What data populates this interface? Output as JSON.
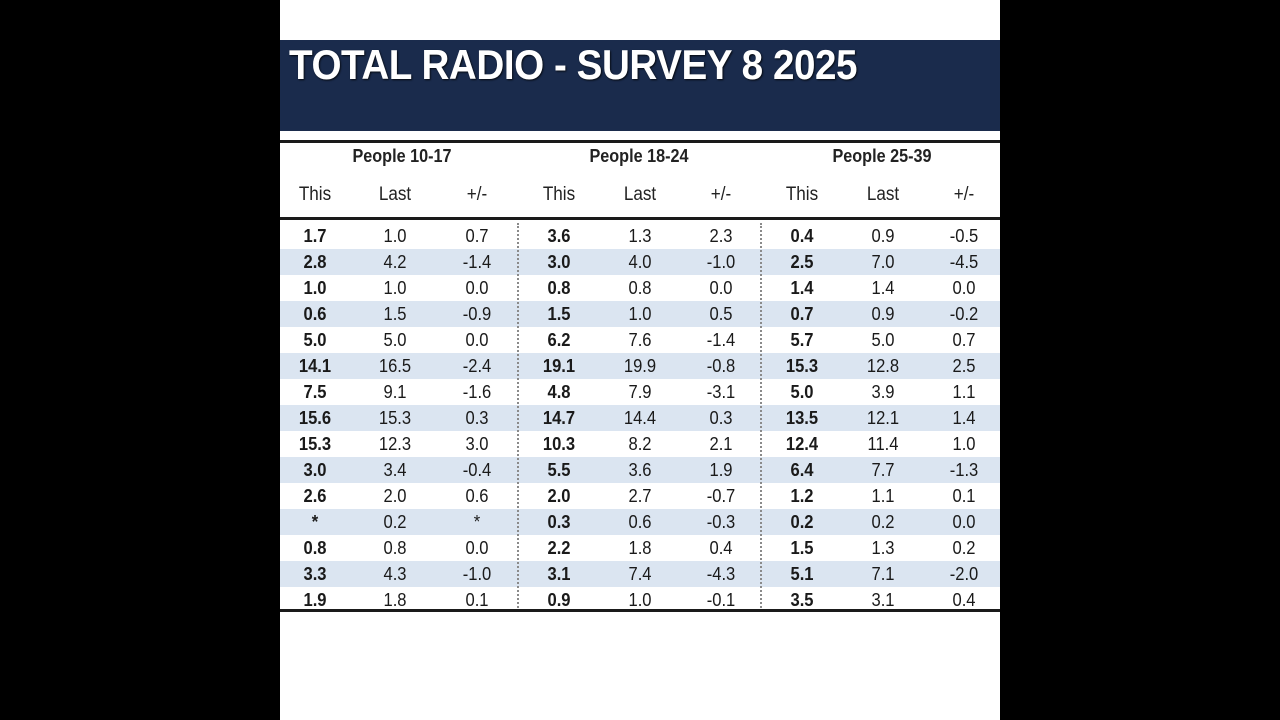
{
  "title": "TOTAL RADIO - SURVEY 8 2025",
  "groups": [
    {
      "label": "People 10-17",
      "cols": [
        "This",
        "Last",
        "+/-"
      ]
    },
    {
      "label": "People 18-24",
      "cols": [
        "This",
        "Last",
        "+/-"
      ]
    },
    {
      "label": "People 25-39",
      "cols": [
        "This",
        "Last",
        "+/-"
      ]
    }
  ],
  "rows": [
    [
      "1.7",
      "1.0",
      "0.7",
      "3.6",
      "1.3",
      "2.3",
      "0.4",
      "0.9",
      "-0.5"
    ],
    [
      "2.8",
      "4.2",
      "-1.4",
      "3.0",
      "4.0",
      "-1.0",
      "2.5",
      "7.0",
      "-4.5"
    ],
    [
      "1.0",
      "1.0",
      "0.0",
      "0.8",
      "0.8",
      "0.0",
      "1.4",
      "1.4",
      "0.0"
    ],
    [
      "0.6",
      "1.5",
      "-0.9",
      "1.5",
      "1.0",
      "0.5",
      "0.7",
      "0.9",
      "-0.2"
    ],
    [
      "5.0",
      "5.0",
      "0.0",
      "6.2",
      "7.6",
      "-1.4",
      "5.7",
      "5.0",
      "0.7"
    ],
    [
      "14.1",
      "16.5",
      "-2.4",
      "19.1",
      "19.9",
      "-0.8",
      "15.3",
      "12.8",
      "2.5"
    ],
    [
      "7.5",
      "9.1",
      "-1.6",
      "4.8",
      "7.9",
      "-3.1",
      "5.0",
      "3.9",
      "1.1"
    ],
    [
      "15.6",
      "15.3",
      "0.3",
      "14.7",
      "14.4",
      "0.3",
      "13.5",
      "12.1",
      "1.4"
    ],
    [
      "15.3",
      "12.3",
      "3.0",
      "10.3",
      "8.2",
      "2.1",
      "12.4",
      "11.4",
      "1.0"
    ],
    [
      "3.0",
      "3.4",
      "-0.4",
      "5.5",
      "3.6",
      "1.9",
      "6.4",
      "7.7",
      "-1.3"
    ],
    [
      "2.6",
      "2.0",
      "0.6",
      "2.0",
      "2.7",
      "-0.7",
      "1.2",
      "1.1",
      "0.1"
    ],
    [
      "*",
      "0.2",
      "*",
      "0.3",
      "0.6",
      "-0.3",
      "0.2",
      "0.2",
      "0.0"
    ],
    [
      "0.8",
      "0.8",
      "0.0",
      "2.2",
      "1.8",
      "0.4",
      "1.5",
      "1.3",
      "0.2"
    ],
    [
      "3.3",
      "4.3",
      "-1.0",
      "3.1",
      "7.4",
      "-4.3",
      "5.1",
      "7.1",
      "-2.0"
    ],
    [
      "1.9",
      "1.8",
      "0.1",
      "0.9",
      "1.0",
      "-0.1",
      "3.5",
      "3.1",
      "0.4"
    ]
  ]
}
